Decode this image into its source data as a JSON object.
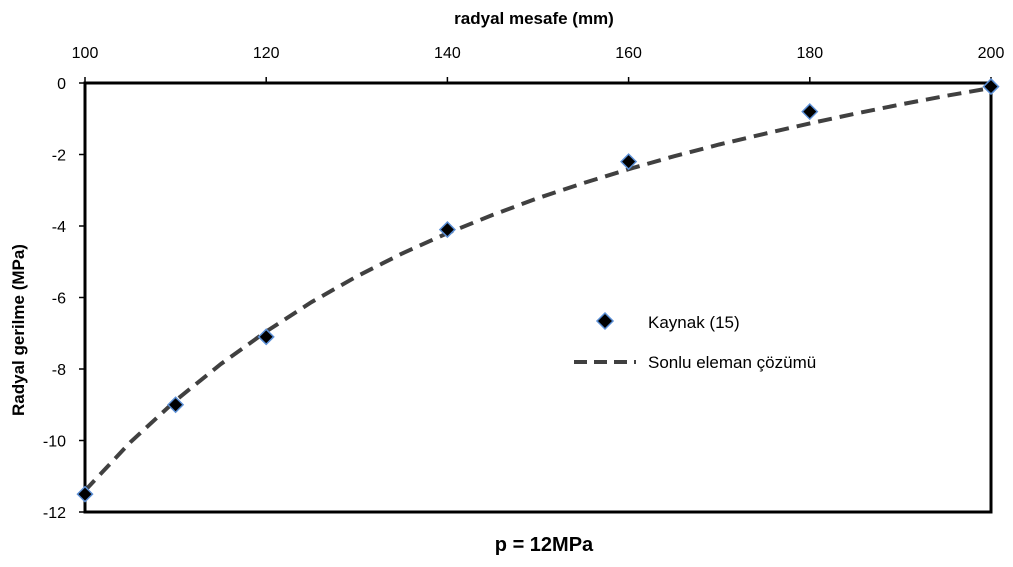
{
  "chart_data": {
    "type": "scatter",
    "title": "",
    "caption": "p = 12MPa",
    "xlabel": "radyal mesafe (mm)",
    "ylabel": "Radyal gerilme  (MPa)",
    "x_axis_position": "top",
    "xlim": [
      100,
      200
    ],
    "ylim": [
      -12,
      0
    ],
    "x_ticks": [
      100,
      120,
      140,
      160,
      180,
      200
    ],
    "y_ticks": [
      0,
      -2,
      -4,
      -6,
      -8,
      -10,
      -12
    ],
    "grid": false,
    "legend_position": "right-center",
    "series": [
      {
        "name": "Kaynak (15)",
        "type": "scatter",
        "marker": "diamond",
        "marker_fill": "#000000",
        "marker_edge": "#5b8fd6",
        "x": [
          100,
          110,
          120,
          140,
          160,
          180,
          200
        ],
        "y": [
          -11.5,
          -9.0,
          -7.1,
          -4.1,
          -2.2,
          -0.8,
          -0.1
        ]
      },
      {
        "name": "Sonlu eleman çözümü",
        "type": "line",
        "style": "dashed",
        "color": "#404040",
        "x": [
          100,
          105,
          110,
          115,
          120,
          125,
          130,
          135,
          140,
          145,
          150,
          155,
          160,
          165,
          170,
          175,
          180,
          185,
          190,
          195,
          200
        ],
        "y": [
          -11.4,
          -10.05,
          -8.88,
          -7.86,
          -6.95,
          -6.13,
          -5.41,
          -4.77,
          -4.2,
          -3.69,
          -3.22,
          -2.8,
          -2.41,
          -2.05,
          -1.72,
          -1.42,
          -1.13,
          -0.86,
          -0.6,
          -0.36,
          -0.14
        ]
      }
    ]
  }
}
